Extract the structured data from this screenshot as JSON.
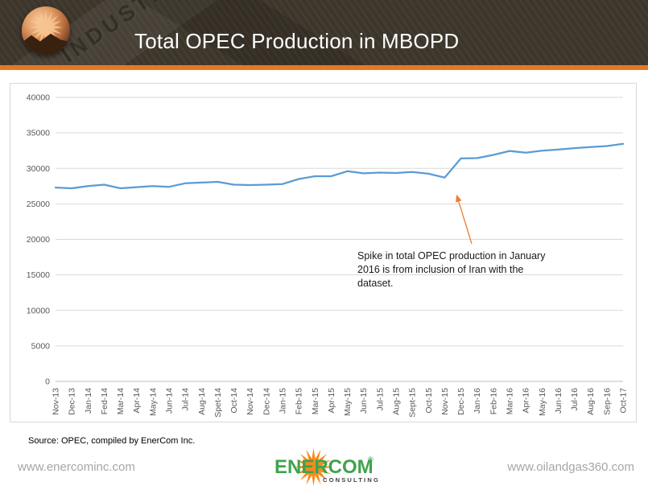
{
  "header": {
    "watermark": "INDUSTRY"
  },
  "chart_data": {
    "type": "line",
    "title": "Total OPEC Production in MBOPD",
    "xlabel": "",
    "ylabel": "",
    "categories": [
      "Nov-13",
      "Dec-13",
      "Jan-14",
      "Fed-14",
      "Mar-14",
      "Apr-14",
      "May-14",
      "Jun-14",
      "Jul-14",
      "Aug-14",
      "Spet-14",
      "Oct-14",
      "Nov-14",
      "Dec-14",
      "Jan-15",
      "Feb-15",
      "Mar-15",
      "Apr-15",
      "May-15",
      "Jun-15",
      "Jul-15",
      "Aug-15",
      "Sept-15",
      "Oct-15",
      "Nov-15",
      "Dec-15",
      "Jan-16",
      "Feb-16",
      "Mar-16",
      "Apr-16",
      "May-16",
      "Jun-16",
      "Jul-16",
      "Aug-16",
      "Sep-16",
      "Oct-17"
    ],
    "values": [
      27300,
      27200,
      27500,
      27700,
      27200,
      27350,
      27500,
      27400,
      27900,
      28000,
      28100,
      27700,
      27650,
      27700,
      27800,
      28500,
      28900,
      28900,
      29600,
      29300,
      29400,
      29350,
      29500,
      29250,
      28700,
      31400,
      31450,
      31900,
      32450,
      32200,
      32500,
      32650,
      32850,
      33000,
      33150,
      33450
    ],
    "ylim": [
      0,
      40000
    ],
    "yticks": [
      0,
      5000,
      10000,
      15000,
      20000,
      25000,
      30000,
      35000,
      40000
    ],
    "grid": true,
    "legend": false,
    "line_color": "#5B9BD5",
    "grid_color": "#D9D9D9",
    "axis_line_color": "#BFBFBF",
    "axis_text_color": "#595959",
    "annotation": {
      "lines": [
        "Spike in total OPEC production in January",
        "2016 is from inclusion of Iran with the",
        "dataset."
      ],
      "arrow_color": "#ED7D31"
    }
  },
  "footer": {
    "source": "Source: OPEC, compiled by EnerCom Inc.",
    "left_link": "www.enercominc.com",
    "right_link": "www.oilandgas360.com",
    "logo": {
      "wordmark": "ENERCOM",
      "registered": "®",
      "subtitle": "CONSULTING"
    }
  },
  "colors": {
    "accent_orange": "#E87722",
    "header_brown": "#3F382D",
    "logo_green": "#3FA34D",
    "logo_orange": "#F68B1F",
    "link_gray": "#A6A6A6"
  }
}
